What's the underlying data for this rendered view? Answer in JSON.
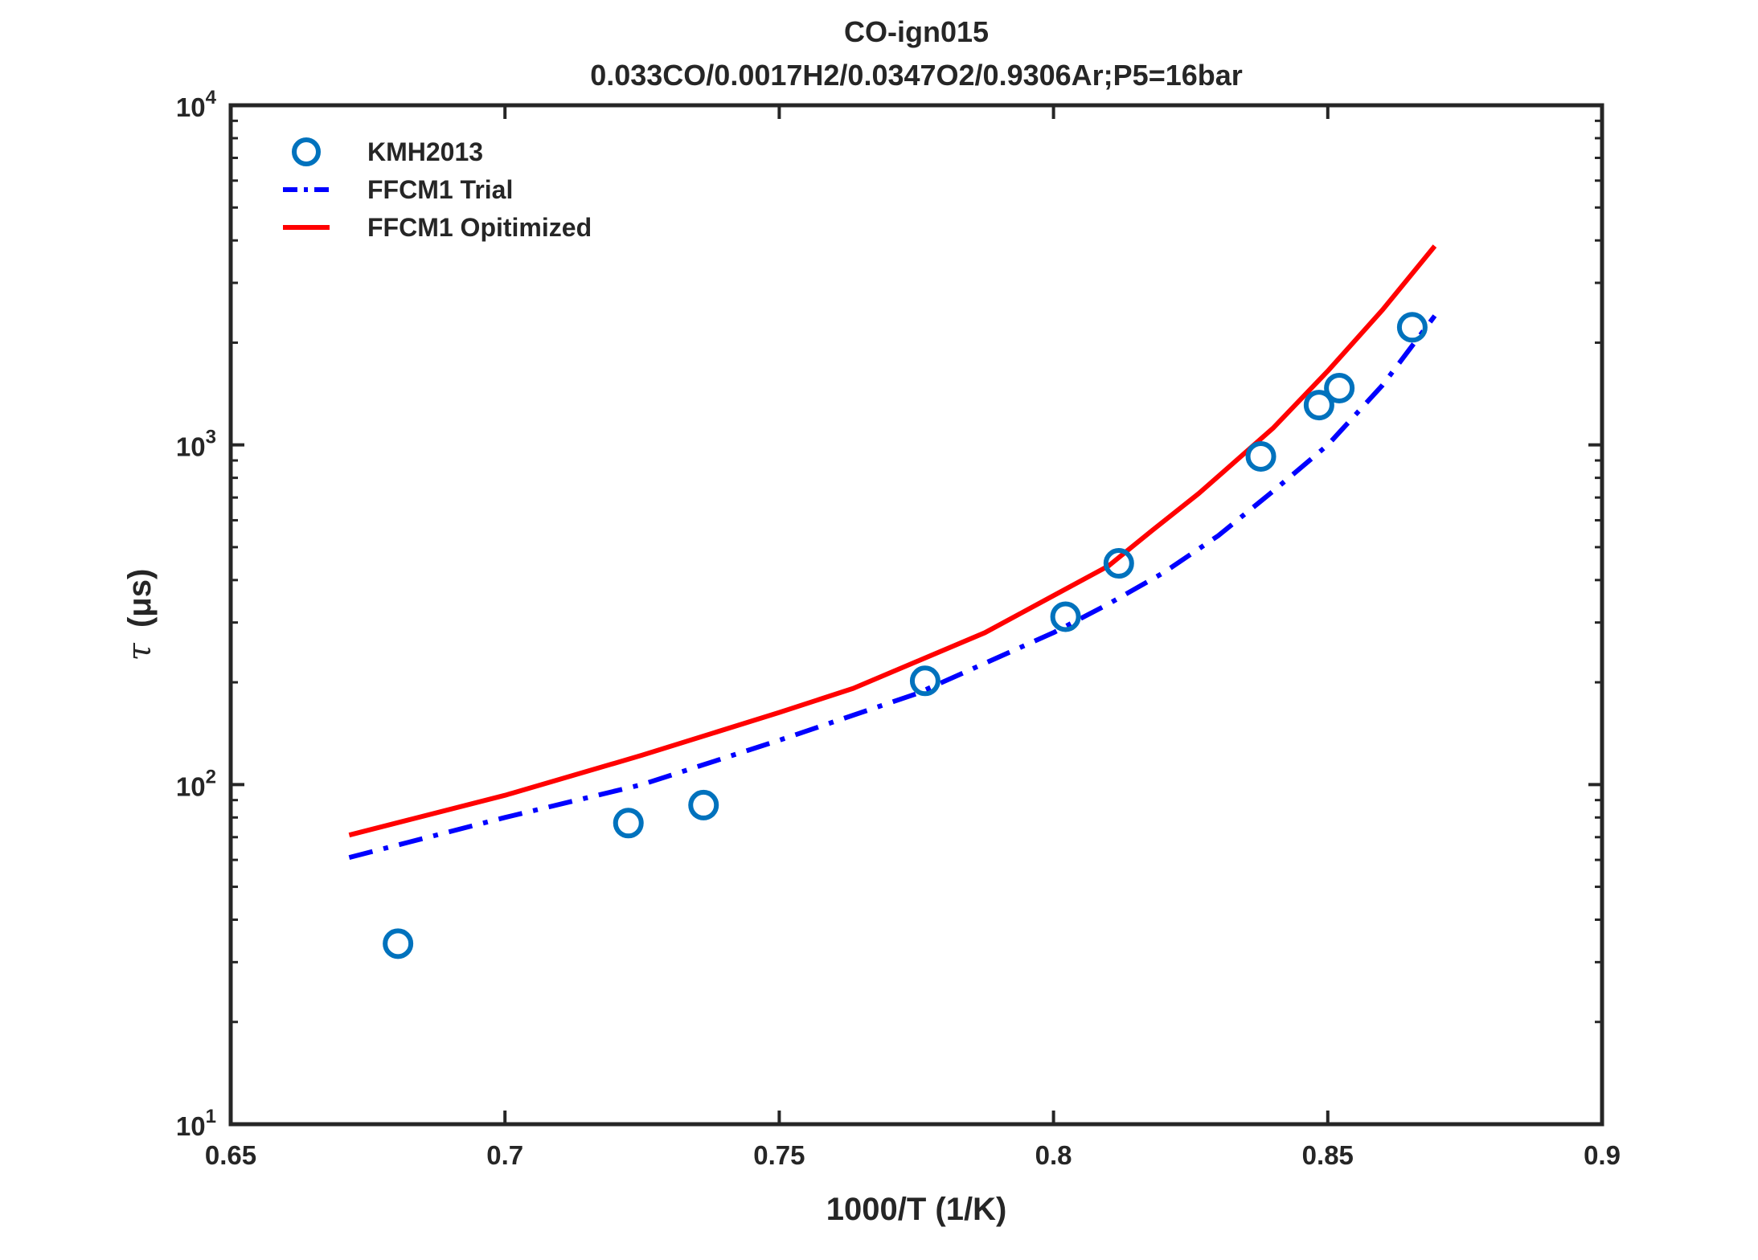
{
  "chart_data": {
    "type": "line",
    "title": "CO-ign015",
    "subtitle": "0.033CO/0.0017H2/0.0347O2/0.9306Ar;P5=16bar",
    "xlabel": "1000/T (1/K)",
    "ylabel_symbol": "τ",
    "ylabel_unit": "(μs)",
    "xlim": [
      0.65,
      0.9
    ],
    "ylim": [
      10,
      10000
    ],
    "yscale": "log",
    "grid": false,
    "legend_position": "top-left",
    "x_ticks": [
      0.65,
      0.7,
      0.75,
      0.8,
      0.85,
      0.9
    ],
    "x_tick_labels": [
      "0.65",
      "0.7",
      "0.75",
      "0.8",
      "0.85",
      "0.9"
    ],
    "y_ticks": [
      {
        "value": 10,
        "base": "10",
        "exp": "1"
      },
      {
        "value": 100,
        "base": "10",
        "exp": "2"
      },
      {
        "value": 1000,
        "base": "10",
        "exp": "3"
      },
      {
        "value": 10000,
        "base": "10",
        "exp": "4"
      }
    ],
    "series": [
      {
        "name": "KMH2013",
        "kind": "markers",
        "marker": "circle",
        "color": "#0072bd",
        "x": [
          0.6805,
          0.7225,
          0.7362,
          0.7766,
          0.8022,
          0.8119,
          0.8378,
          0.8484,
          0.8521,
          0.8654
        ],
        "y": [
          34,
          77,
          87,
          202,
          312,
          448,
          925,
          1310,
          1470,
          2220
        ]
      },
      {
        "name": "FFCM1 Trial",
        "kind": "line",
        "dash": "dashdot",
        "color": "#0000ff",
        "x": [
          0.6716,
          0.7,
          0.725,
          0.75,
          0.775,
          0.8,
          0.81,
          0.82,
          0.83,
          0.84,
          0.85,
          0.86,
          0.8695
        ],
        "y": [
          61,
          80,
          100,
          135,
          185,
          280,
          340,
          420,
          540,
          730,
          1000,
          1500,
          2400
        ]
      },
      {
        "name": "FFCM1 Opitimized",
        "kind": "line",
        "dash": "solid",
        "color": "#ff0000",
        "x": [
          0.6716,
          0.7,
          0.725,
          0.75,
          0.7635,
          0.775,
          0.7875,
          0.8,
          0.81,
          0.818,
          0.8265,
          0.84,
          0.85,
          0.86,
          0.8695
        ],
        "y": [
          71,
          93,
          122,
          163,
          192,
          230,
          280,
          360,
          440,
          560,
          720,
          1120,
          1650,
          2500,
          3850
        ]
      }
    ]
  }
}
